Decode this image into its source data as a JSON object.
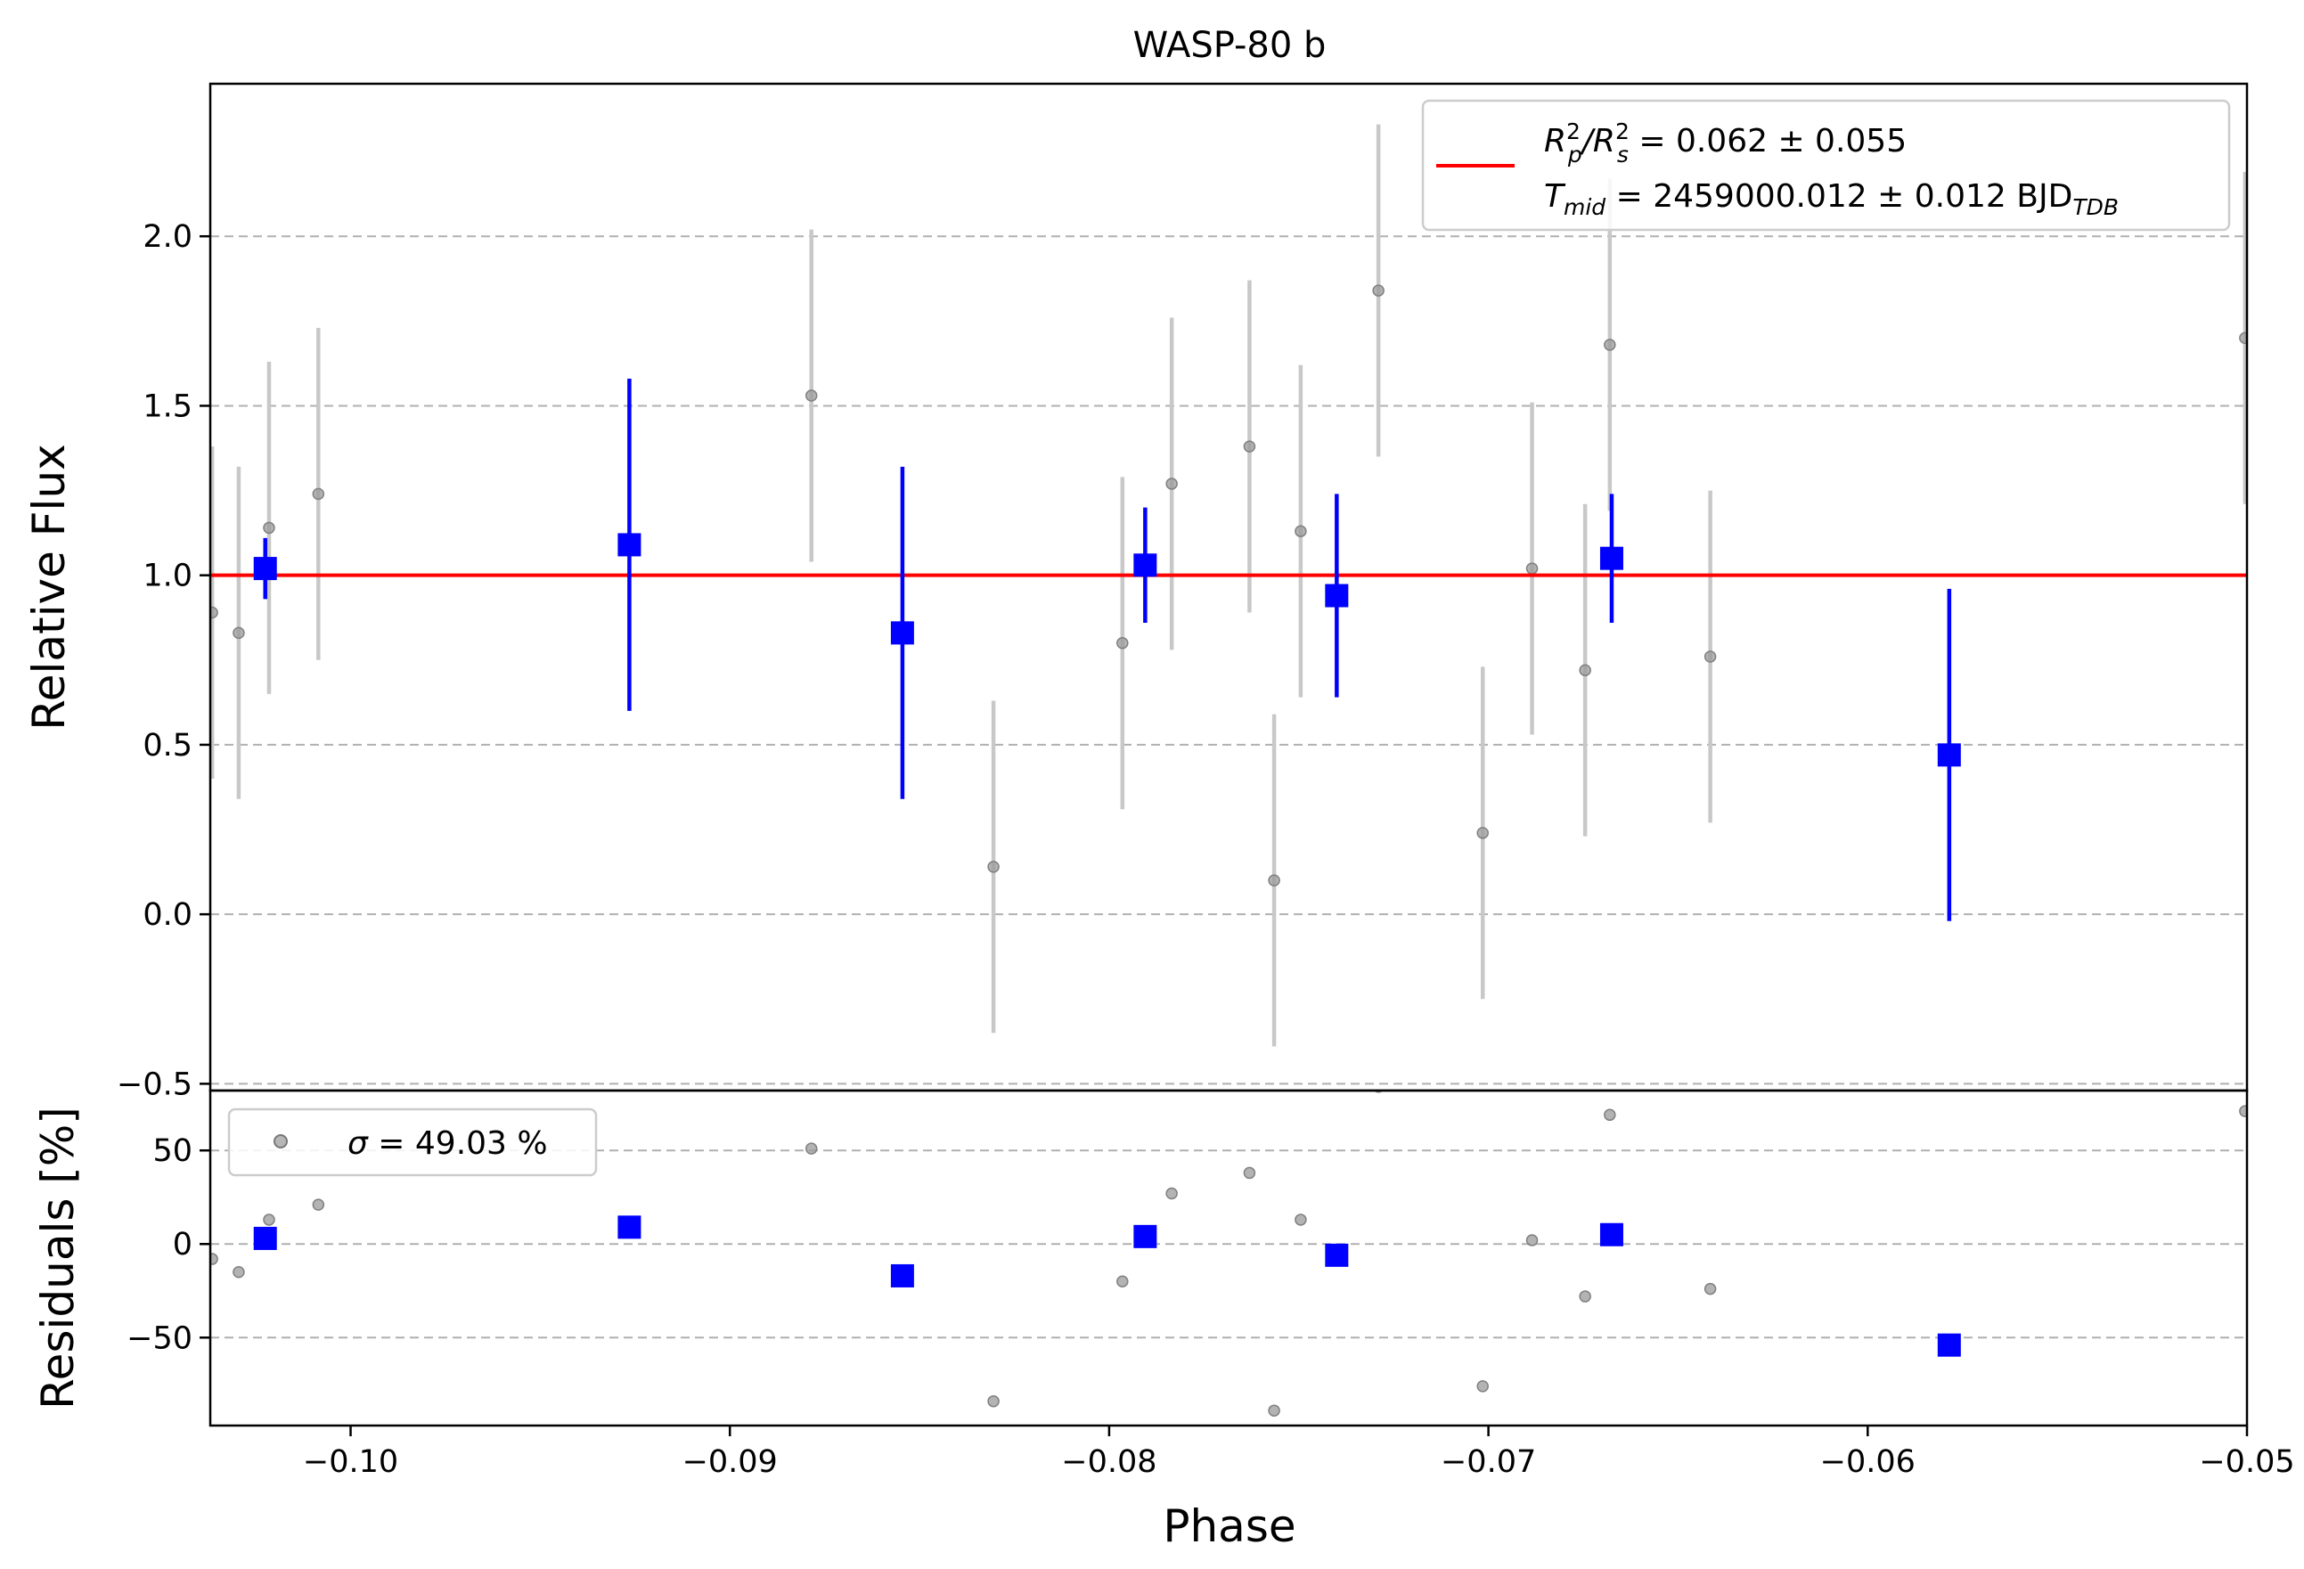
{
  "chart_data": [
    {
      "type": "scatter",
      "title": "WASP-80 b",
      "xlabel": "",
      "ylabel": "Relative Flux",
      "xlim": [
        -0.1037,
        -0.05
      ],
      "ylim": [
        -0.52,
        2.45
      ],
      "grid": "horizontal dashed",
      "yticks": [
        {
          "value": 2.0,
          "label": "2.0"
        },
        {
          "value": 1.5,
          "label": "1.5"
        },
        {
          "value": 1.0,
          "label": "1.0"
        },
        {
          "value": 0.5,
          "label": "0.5"
        },
        {
          "value": 0.0,
          "label": "0.0"
        },
        {
          "value": -0.5,
          "label": "−0.5"
        }
      ],
      "legend": {
        "placement": "top-right",
        "line1": {
          "sym": "R",
          "sup1": "2",
          "sub1": "p",
          "slash": "/R",
          "sup2": "2",
          "sub2": "s",
          "rest": " = 0.062 ± 0.055"
        },
        "line2": {
          "sym": "T",
          "sub": "mid",
          "rest": " = 2459000.012 ± 0.012 BJD",
          "sub2": "TDB"
        }
      },
      "model": {
        "value": 1.0,
        "color": "#ff0000"
      },
      "raw_points": [
        {
          "x": -0.10365,
          "y": 0.89,
          "err": 0.49
        },
        {
          "x": -0.10295,
          "y": 0.83,
          "err": 0.49
        },
        {
          "x": -0.10215,
          "y": 1.14,
          "err": 0.49
        },
        {
          "x": -0.10085,
          "y": 1.24,
          "err": 0.49
        },
        {
          "x": -0.08785,
          "y": 1.53,
          "err": 0.49
        },
        {
          "x": -0.08305,
          "y": 0.14,
          "err": 0.49
        },
        {
          "x": -0.07965,
          "y": 0.8,
          "err": 0.49
        },
        {
          "x": -0.07835,
          "y": 1.27,
          "err": 0.49
        },
        {
          "x": -0.0763,
          "y": 1.38,
          "err": 0.49
        },
        {
          "x": -0.07565,
          "y": 0.1,
          "err": 0.49
        },
        {
          "x": -0.07495,
          "y": 1.13,
          "err": 0.49
        },
        {
          "x": -0.0729,
          "y": 1.84,
          "err": 0.49
        },
        {
          "x": -0.07015,
          "y": 0.24,
          "err": 0.49
        },
        {
          "x": -0.06885,
          "y": 1.02,
          "err": 0.49
        },
        {
          "x": -0.06745,
          "y": 0.72,
          "err": 0.49
        },
        {
          "x": -0.0668,
          "y": 1.68,
          "err": 0.49
        },
        {
          "x": -0.06415,
          "y": 0.76,
          "err": 0.49
        },
        {
          "x": -0.05005,
          "y": 1.7,
          "err": 0.49
        }
      ],
      "binned_points": [
        {
          "x": -0.10225,
          "y": 1.02,
          "err": 0.09
        },
        {
          "x": -0.09265,
          "y": 1.09,
          "err": 0.49
        },
        {
          "x": -0.08545,
          "y": 0.83,
          "err": 0.49
        },
        {
          "x": -0.07905,
          "y": 1.03,
          "err": 0.17
        },
        {
          "x": -0.074,
          "y": 0.94,
          "err": 0.3
        },
        {
          "x": -0.06675,
          "y": 1.05,
          "err": 0.19
        },
        {
          "x": -0.05785,
          "y": 0.47,
          "err": 0.49
        }
      ],
      "raw_color": "#999999",
      "raw_err_color": "#c8c8c8",
      "binned_color": "#0000ff"
    },
    {
      "type": "scatter",
      "title": "",
      "xlabel": "Phase",
      "ylabel": "Residuals [%]",
      "xlim": [
        -0.1037,
        -0.05
      ],
      "ylim": [
        -97,
        82
      ],
      "grid": "horizontal dashed",
      "yticks": [
        {
          "value": 50,
          "label": "50"
        },
        {
          "value": 0,
          "label": "0"
        },
        {
          "value": -50,
          "label": "−50"
        }
      ],
      "xticks": [
        {
          "value": -0.1,
          "label": "−0.10"
        },
        {
          "value": -0.09,
          "label": "−0.09"
        },
        {
          "value": -0.08,
          "label": "−0.08"
        },
        {
          "value": -0.07,
          "label": "−0.07"
        },
        {
          "value": -0.06,
          "label": "−0.06"
        },
        {
          "value": -0.05,
          "label": "−0.05"
        }
      ],
      "legend": {
        "placement": "top-left",
        "sym": "σ",
        "rest": " = 49.03 %"
      },
      "raw_points": [
        {
          "x": -0.10365,
          "y": -8
        },
        {
          "x": -0.10295,
          "y": -15
        },
        {
          "x": -0.10215,
          "y": 13
        },
        {
          "x": -0.10085,
          "y": 21
        },
        {
          "x": -0.08785,
          "y": 51
        },
        {
          "x": -0.08305,
          "y": -84
        },
        {
          "x": -0.07965,
          "y": -20
        },
        {
          "x": -0.07835,
          "y": 27
        },
        {
          "x": -0.0763,
          "y": 38
        },
        {
          "x": -0.07565,
          "y": -89
        },
        {
          "x": -0.07495,
          "y": 13
        },
        {
          "x": -0.0729,
          "y": 84
        },
        {
          "x": -0.07015,
          "y": -76
        },
        {
          "x": -0.06885,
          "y": 2
        },
        {
          "x": -0.06745,
          "y": -28
        },
        {
          "x": -0.0668,
          "y": 69
        },
        {
          "x": -0.06415,
          "y": -24
        },
        {
          "x": -0.05005,
          "y": 71
        }
      ],
      "binned_points": [
        {
          "x": -0.10225,
          "y": 3
        },
        {
          "x": -0.09265,
          "y": 9
        },
        {
          "x": -0.08545,
          "y": -17
        },
        {
          "x": -0.07905,
          "y": 4
        },
        {
          "x": -0.074,
          "y": -6
        },
        {
          "x": -0.06675,
          "y": 5
        },
        {
          "x": -0.05785,
          "y": -54
        }
      ]
    }
  ]
}
